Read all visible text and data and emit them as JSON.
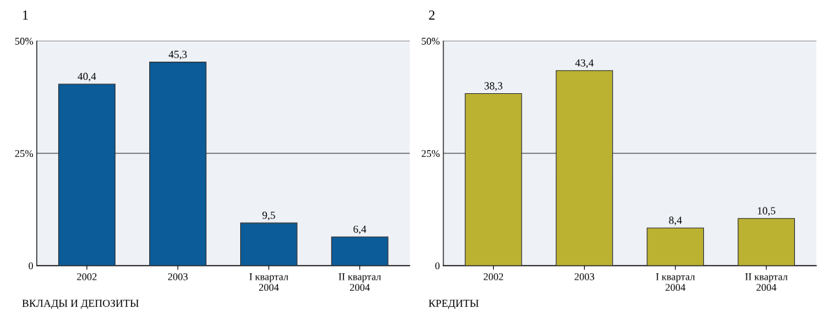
{
  "chart_data": [
    {
      "type": "bar",
      "title": "1",
      "xlabel": "ВКЛАДЫ И ДЕПОЗИТЫ",
      "categories": [
        "2002",
        "2003",
        "I квартал\n2004",
        "II квартал\n2004"
      ],
      "values": [
        40.4,
        45.3,
        9.5,
        6.4
      ],
      "value_labels": [
        "40,4",
        "45,3",
        "9,5",
        "6,4"
      ],
      "color": "#0b5c98",
      "ylim": [
        0,
        50
      ],
      "yticks": [
        {
          "value": 0,
          "label": "0"
        },
        {
          "value": 25,
          "label": "25%"
        },
        {
          "value": 50,
          "label": "50%"
        }
      ],
      "grid": "y"
    },
    {
      "type": "bar",
      "title": "2",
      "xlabel": "КРЕДИТЫ",
      "categories": [
        "2002",
        "2003",
        "I квартал\n2004",
        "II квартал\n2004"
      ],
      "values": [
        38.3,
        43.4,
        8.4,
        10.5
      ],
      "value_labels": [
        "38,3",
        "43,4",
        "8,4",
        "10,5"
      ],
      "color": "#bcb232",
      "ylim": [
        0,
        50
      ],
      "yticks": [
        {
          "value": 0,
          "label": "0"
        },
        {
          "value": 25,
          "label": "25%"
        },
        {
          "value": 50,
          "label": "50%"
        }
      ],
      "grid": "y"
    }
  ]
}
